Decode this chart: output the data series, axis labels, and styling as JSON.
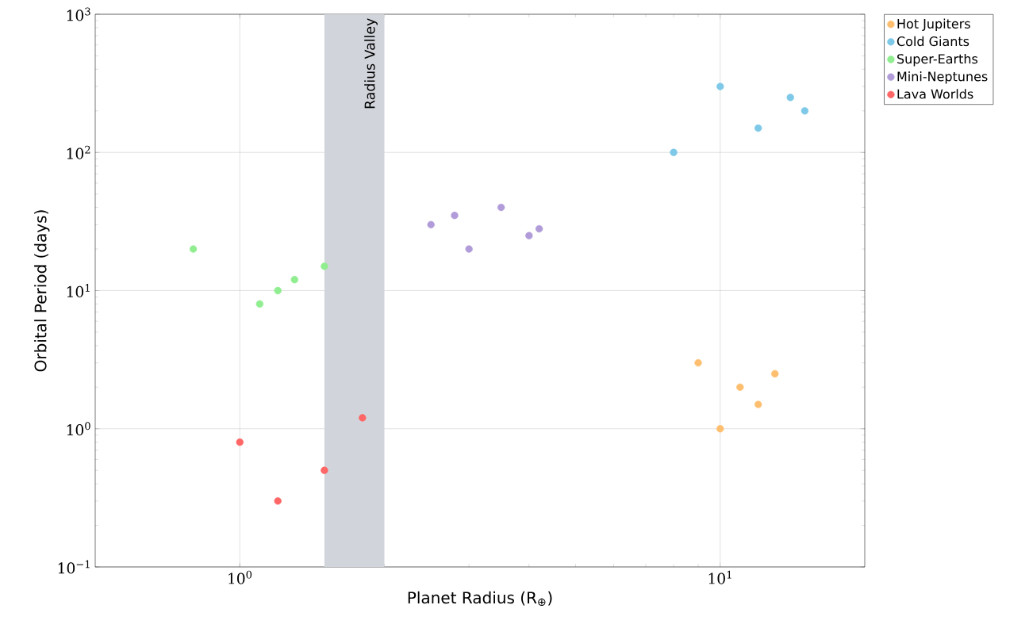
{
  "chart_data": {
    "type": "scatter",
    "xlabel": "Planet Radius (R$_{⊕}$)",
    "ylabel": "Orbital Period (days)",
    "log": "xy",
    "xlim": [
      0.5,
      20
    ],
    "ylim": [
      0.1,
      1000
    ],
    "xticks": [
      {
        "value": 1,
        "label": "10$^{0}$"
      },
      {
        "value": 10,
        "label": "10$^{1}$"
      }
    ],
    "yticks": [
      {
        "value": 0.1,
        "label": "10$^{−1}$"
      },
      {
        "value": 1,
        "label": "10$^{0}$"
      },
      {
        "value": 10,
        "label": "10$^{1}$"
      },
      {
        "value": 100,
        "label": "10$^{2}$"
      },
      {
        "value": 1000,
        "label": "10$^{3}$"
      }
    ],
    "grid": true,
    "legend": "top right",
    "marker": "circle",
    "bands": [
      {
        "axis": "x",
        "from": 1.5,
        "to": 2,
        "label": "Radius Valley",
        "color": "#d1d5db"
      }
    ],
    "series": [
      {
        "name": "Hot Jupiters",
        "color": "#fdbf6f",
        "x": [
          9,
          10,
          11,
          12,
          13
        ],
        "values": [
          3,
          1,
          2,
          1.5,
          2.5
        ]
      },
      {
        "name": "Cold Giants",
        "color": "#7ec8e8",
        "x": [
          8,
          10,
          12,
          14,
          15
        ],
        "values": [
          100,
          300,
          150,
          250,
          200
        ]
      },
      {
        "name": "Super-Earths",
        "color": "#90ee90",
        "x": [
          0.8,
          1.1,
          1.2,
          1.3,
          1.5
        ],
        "values": [
          20,
          8,
          10,
          12,
          15
        ]
      },
      {
        "name": "Mini-Neptunes",
        "color": "#b19cd9",
        "x": [
          2.5,
          2.8,
          3.0,
          3.5,
          4.0,
          4.2
        ],
        "values": [
          30,
          35,
          20,
          40,
          25,
          28
        ]
      },
      {
        "name": "Lava Worlds",
        "color": "#ff6666",
        "x": [
          1.0,
          1.2,
          1.5,
          1.8
        ],
        "values": [
          0.8,
          0.3,
          0.5,
          1.2
        ]
      }
    ]
  }
}
